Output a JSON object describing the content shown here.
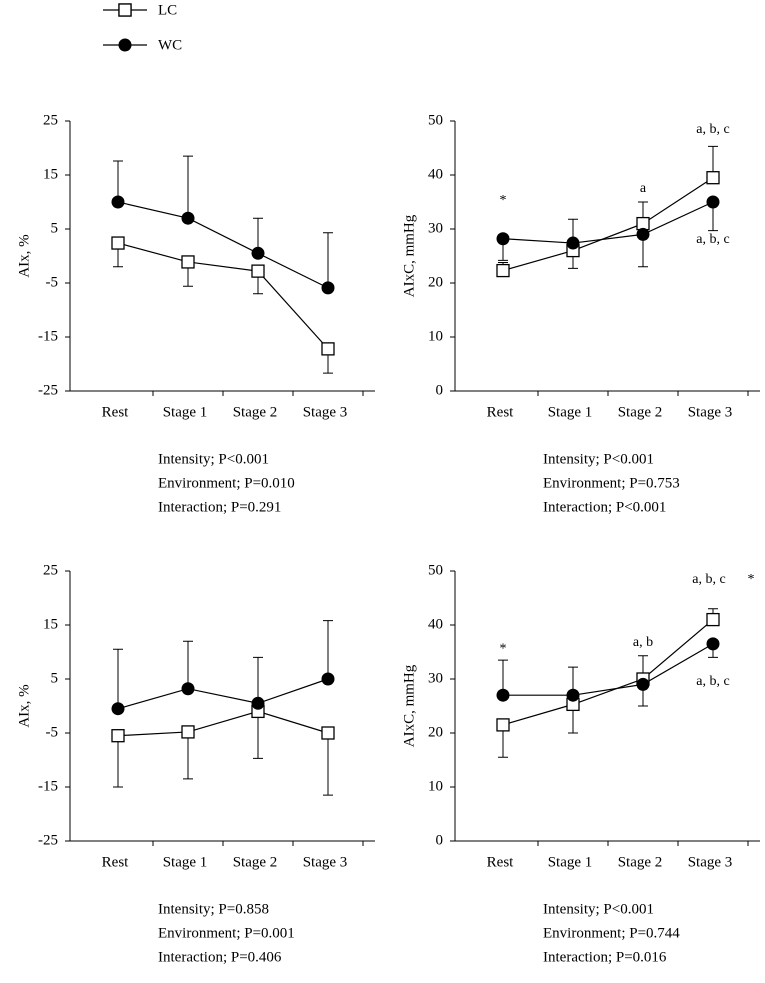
{
  "chart_data": [
    {
      "type": "line",
      "ylabel": "AIx, %",
      "categories": [
        "Rest",
        "Stage 1",
        "Stage 2",
        "Stage 3"
      ],
      "ylim": [
        -25,
        25
      ],
      "yticks": [
        -25,
        -15,
        -5,
        5,
        15,
        25
      ],
      "series": [
        {
          "name": "LC",
          "color": "#000000",
          "marker": "square",
          "values": [
            2.4,
            -1.1,
            -2.8,
            -17.2
          ],
          "errors": [
            4.4,
            4.5,
            4.2,
            4.5
          ],
          "error_direction": [
            "down",
            "down",
            "down",
            "down"
          ]
        },
        {
          "name": "WC",
          "color": "#000000",
          "marker": "circle",
          "values": [
            10,
            7,
            0.5,
            -5.9
          ],
          "errors": [
            7.6,
            11.5,
            6.5,
            10.2
          ],
          "error_direction": [
            "up",
            "up",
            "up",
            "up"
          ]
        }
      ],
      "notes": [
        "Intensity; P<0.001",
        "Environment;  P=0.010",
        "Interaction; P=0.291"
      ]
    },
    {
      "type": "line",
      "ylabel": "AIxC, mmHg",
      "categories": [
        "Rest",
        "Stage 1",
        "Stage 2",
        "Stage 3"
      ],
      "ylim": [
        0,
        50
      ],
      "yticks": [
        0,
        10,
        20,
        30,
        40,
        50
      ],
      "series": [
        {
          "name": "LC",
          "color": "#000000",
          "marker": "square",
          "values": [
            22.3,
            26,
            31,
            39.5
          ],
          "errors": [
            1.5,
            5.8,
            4,
            5.8
          ],
          "error_direction": [
            "up",
            "up",
            "up",
            "up"
          ]
        },
        {
          "name": "WC",
          "color": "#000000",
          "marker": "circle",
          "values": [
            28.2,
            27.4,
            29,
            35
          ],
          "errors": [
            4,
            4.7,
            6,
            5.3
          ],
          "error_direction": [
            "down",
            "down",
            "down",
            "down"
          ]
        }
      ],
      "annotations": [
        "*",
        "a",
        "a, b, c",
        "a, b, c"
      ],
      "notes": [
        "Intensity; P<0.001",
        "Environment;  P=0.753",
        "Interaction; P<0.001"
      ]
    },
    {
      "type": "line",
      "ylabel": "AIx, %",
      "categories": [
        "Rest",
        "Stage 1",
        "Stage 2",
        "Stage 3"
      ],
      "ylim": [
        -25,
        25
      ],
      "yticks": [
        -25,
        -15,
        -5,
        5,
        15,
        25
      ],
      "series": [
        {
          "name": "LC",
          "color": "#000000",
          "marker": "square",
          "values": [
            -5.5,
            -4.8,
            -1,
            -5
          ],
          "errors": [
            9.5,
            8.7,
            8.7,
            11.5
          ],
          "error_direction": [
            "down",
            "down",
            "down",
            "down"
          ]
        },
        {
          "name": "WC",
          "color": "#000000",
          "marker": "circle",
          "values": [
            -0.5,
            3.2,
            0.5,
            5
          ],
          "errors": [
            11,
            8.8,
            8.5,
            10.8
          ],
          "error_direction": [
            "up",
            "up",
            "up",
            "up"
          ]
        }
      ],
      "notes": [
        "Intensity; P=0.858",
        "Environment;  P=0.001",
        "Interaction; P=0.406"
      ]
    },
    {
      "type": "line",
      "ylabel": "AIxC, mmHg",
      "categories": [
        "Rest",
        "Stage 1",
        "Stage 2",
        "Stage 3"
      ],
      "ylim": [
        0,
        50
      ],
      "yticks": [
        0,
        10,
        20,
        30,
        40,
        50
      ],
      "series": [
        {
          "name": "LC",
          "color": "#000000",
          "marker": "square",
          "values": [
            21.5,
            25.3,
            30,
            41
          ],
          "errors": [
            6,
            5.3,
            4.3,
            2
          ],
          "error_direction": [
            "down",
            "down",
            "up",
            "up"
          ]
        },
        {
          "name": "WC",
          "color": "#000000",
          "marker": "circle",
          "values": [
            27,
            27,
            29,
            36.5
          ],
          "errors": [
            6.5,
            5.2,
            4,
            2.5
          ],
          "error_direction": [
            "up",
            "up",
            "down",
            "down"
          ]
        }
      ],
      "annotations": [
        "*",
        "a, b",
        "a, b, c",
        "*",
        "a, b, c"
      ],
      "notes": [
        "Intensity; P<0.001",
        "Environment;  P=0.744",
        "Interaction; P=0.016"
      ]
    }
  ]
}
